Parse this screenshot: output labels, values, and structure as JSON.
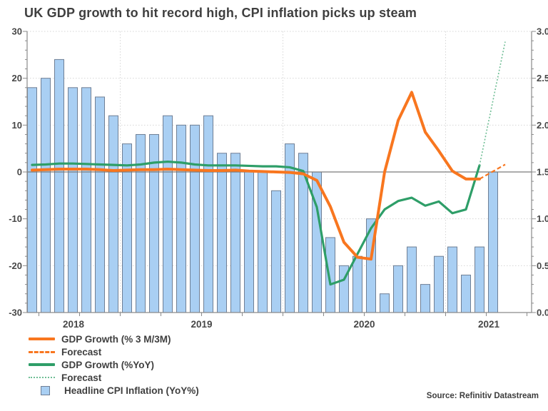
{
  "title": "UK GDP growth to hit record high, CPI inflation picks up steam",
  "source": "Source: Refinitiv Datastream",
  "colors": {
    "bar_fill": "#A9CFF3",
    "bar_border": "#6F7F95",
    "gdp_3m3m_line": "#F8761F",
    "gdp_yoy_line": "#2E9E68",
    "gdp_yoy_forecast_line": "#6FBE95",
    "gridline": "#d6d6d6",
    "axis": "#8a8a8a",
    "zero_line": "#7a7a7a",
    "text": "#3f3f3f"
  },
  "legend": {
    "items": [
      {
        "label": "GDP Growth (% 3 M/3M)",
        "swatch": "orange-solid-line"
      },
      {
        "label": "Forecast",
        "swatch": "orange-dashed-line"
      },
      {
        "label": "GDP Growth (%YoY)",
        "swatch": "green-solid-line"
      },
      {
        "label": "Forecast",
        "swatch": "green-dotted-line"
      },
      {
        "label": "Headline CPI Inflation (YoY%)",
        "swatch": "blue-square"
      }
    ]
  },
  "chart_data": {
    "type": "bar",
    "title": "UK GDP growth to hit record high, CPI inflation picks up steam",
    "x_axis": {
      "year_labels": [
        "2018",
        "2019",
        "2020",
        "2021"
      ],
      "tick_interval": "quarterly"
    },
    "left_axis": {
      "min": -30,
      "max": 30,
      "ticks": [
        "30",
        "20",
        "10",
        "0",
        "-10",
        "-20",
        "-30"
      ]
    },
    "right_axis": {
      "min": 0.0,
      "max": 3.0,
      "ticks": [
        "3.0",
        "2.5",
        "2.0",
        "1.5",
        "1.0",
        "0.5",
        "0.0"
      ]
    },
    "grid": "dotted",
    "months": [
      "2018-06",
      "2018-07",
      "2018-08",
      "2018-09",
      "2018-10",
      "2018-11",
      "2018-12",
      "2019-01",
      "2019-02",
      "2019-03",
      "2019-04",
      "2019-05",
      "2019-06",
      "2019-07",
      "2019-08",
      "2019-09",
      "2019-10",
      "2019-11",
      "2019-12",
      "2020-01",
      "2020-02",
      "2020-03",
      "2020-04",
      "2020-05",
      "2020-06",
      "2020-07",
      "2020-08",
      "2020-09",
      "2020-10",
      "2020-11",
      "2020-12",
      "2021-01",
      "2021-02",
      "2021-03",
      "2021-04"
    ],
    "series": [
      {
        "name": "Headline CPI Inflation (YoY%)",
        "type": "bar",
        "axis": "right",
        "values": [
          2.4,
          2.5,
          2.7,
          2.4,
          2.4,
          2.3,
          2.1,
          1.8,
          1.9,
          1.9,
          2.1,
          2.0,
          2.0,
          2.1,
          1.7,
          1.7,
          1.5,
          1.5,
          1.3,
          1.8,
          1.7,
          1.5,
          0.8,
          0.5,
          0.6,
          1.0,
          0.2,
          0.5,
          0.7,
          0.3,
          0.6,
          0.7,
          0.4,
          0.7,
          1.5
        ]
      },
      {
        "name": "GDP Growth (% 3 M/3M)",
        "type": "line",
        "axis": "left",
        "values": [
          0.4,
          0.5,
          0.6,
          0.6,
          0.6,
          0.5,
          0.3,
          0.4,
          0.5,
          0.5,
          0.6,
          0.5,
          0.4,
          0.3,
          0.3,
          0.4,
          0.2,
          0.1,
          0.0,
          -0.1,
          -0.4,
          -1.8,
          -7.4,
          -15.0,
          -18.2,
          -18.6,
          0.0,
          11.0,
          17.0,
          8.5,
          4.5,
          0.2,
          -1.5,
          -1.5,
          null
        ]
      },
      {
        "name": "GDP Growth (%YoY)",
        "type": "line",
        "axis": "left",
        "values": [
          1.5,
          1.6,
          1.8,
          1.8,
          1.7,
          1.6,
          1.5,
          1.4,
          1.6,
          2.0,
          2.2,
          2.0,
          1.6,
          1.4,
          1.4,
          1.4,
          1.3,
          1.2,
          1.2,
          1.0,
          0.2,
          -7.5,
          -24.0,
          -23.0,
          -17.5,
          -12.0,
          -8.0,
          -6.2,
          -5.5,
          -7.2,
          -6.3,
          -8.8,
          -8.0,
          1.4,
          null
        ]
      }
    ],
    "forecasts": [
      {
        "name": "Forecast",
        "of": "GDP Growth (% 3 M/3M)",
        "style": "dashed",
        "from_month": "2021-03",
        "from_value": -1.5,
        "end_value": 1.6
      },
      {
        "name": "Forecast",
        "of": "GDP Growth (%YoY)",
        "style": "dotted",
        "from_month": "2021-03",
        "from_value": 1.4,
        "end_value": 27.8
      }
    ]
  }
}
